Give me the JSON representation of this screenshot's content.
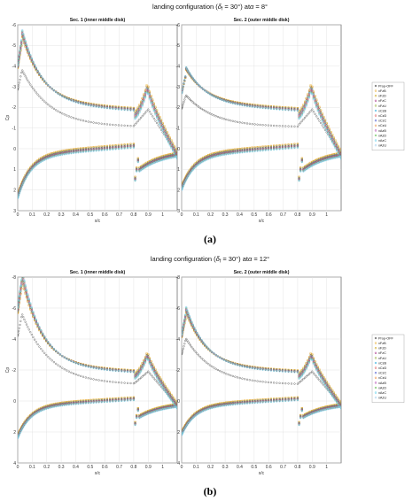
{
  "figure": {
    "label_a": "(a)",
    "label_b": "(b)"
  },
  "chart_data": [
    {
      "type": "scatter",
      "title": "landing configuration (δ_f = 30°) at α = 8°",
      "title_main": "landing configuration (",
      "title_delta": "δ",
      "title_sub": "f",
      "title_tail": " = 30°) at",
      "title_alpha": "α",
      "title_value": " = 8°",
      "panels": [
        {
          "title": "Sec. 1 (inner middle disk)",
          "upper_peak": -5.3,
          "lower_start": 2.0,
          "flap_peak": -3.0
        },
        {
          "title": "Sec. 2 (outer middle disk)",
          "upper_peak": -3.6,
          "lower_start": 1.6,
          "flap_peak": -3.0
        }
      ],
      "xlabel": "x/c",
      "ylabel": "C_p",
      "xlim": [
        0,
        1.1
      ],
      "ylim": [
        3,
        -6
      ],
      "xticks": [
        "0",
        "0.1",
        "0.2",
        "0.3",
        "0.4",
        "0.5",
        "0.6",
        "0.7",
        "0.8",
        "0.9",
        "1"
      ],
      "yticks": [
        "-6",
        "-5",
        "-4",
        "-3",
        "-2",
        "-1",
        "0",
        "1",
        "2",
        "3"
      ],
      "grid": true,
      "legend_position": "right",
      "series": [
        {
          "name": "Prop-OFF",
          "color": "#333333",
          "marker": "circle"
        },
        {
          "name": "xFzB",
          "color": "#e8a317",
          "marker": "square"
        },
        {
          "name": "xFzD",
          "color": "#c8a000",
          "marker": "diamond"
        },
        {
          "name": "xFzC",
          "color": "#a0207d",
          "marker": "cross"
        },
        {
          "name": "xFzU",
          "color": "#88aa22",
          "marker": "plus"
        },
        {
          "name": "xCzB",
          "color": "#22aadd",
          "marker": "circle"
        },
        {
          "name": "xCzD",
          "color": "#dd4444",
          "marker": "circle"
        },
        {
          "name": "xCzC",
          "color": "#3344cc",
          "marker": "circle"
        },
        {
          "name": "xCzU",
          "color": "#ee8833",
          "marker": "circle"
        },
        {
          "name": "xAzB",
          "color": "#aa33aa",
          "marker": "circle"
        },
        {
          "name": "xAzD",
          "color": "#55bb44",
          "marker": "circle"
        },
        {
          "name": "xAzC",
          "color": "#44ccee",
          "marker": "circle"
        },
        {
          "name": "xAzU",
          "color": "#99ccee",
          "marker": "circle"
        }
      ]
    },
    {
      "type": "scatter",
      "title": "landing configuration (δ_f = 30°) at α = 12°",
      "title_main": "landing configuration (",
      "title_delta": "δ",
      "title_sub": "f",
      "title_tail": " = 30°) at",
      "title_alpha": "α",
      "title_value": " = 12°",
      "panels": [
        {
          "title": "Sec. 1 (inner middle disk)",
          "upper_peak": -7.8,
          "lower_start": 2.0,
          "flap_peak": -3.0
        },
        {
          "title": "Sec. 2 (outer middle disk)",
          "upper_peak": -5.6,
          "lower_start": 1.8,
          "flap_peak": -3.0
        }
      ],
      "xlabel": "x/c",
      "ylabel": "C_p",
      "xlim": [
        0,
        1.1
      ],
      "ylim": [
        4,
        -8
      ],
      "xticks": [
        "0",
        "0.1",
        "0.2",
        "0.3",
        "0.4",
        "0.5",
        "0.6",
        "0.7",
        "0.8",
        "0.9",
        "1"
      ],
      "yticks": [
        "-8",
        "-6",
        "-4",
        "-2",
        "0",
        "2",
        "4"
      ],
      "grid": true,
      "legend_position": "right",
      "series": [
        {
          "name": "Prop-OFF",
          "color": "#333333",
          "marker": "circle"
        },
        {
          "name": "xFzB",
          "color": "#e8a317",
          "marker": "square"
        },
        {
          "name": "xFzD",
          "color": "#c8a000",
          "marker": "diamond"
        },
        {
          "name": "xFzC",
          "color": "#a0207d",
          "marker": "cross"
        },
        {
          "name": "xFzU",
          "color": "#88aa22",
          "marker": "plus"
        },
        {
          "name": "xCzB",
          "color": "#22aadd",
          "marker": "circle"
        },
        {
          "name": "xCzD",
          "color": "#dd4444",
          "marker": "circle"
        },
        {
          "name": "xCzC",
          "color": "#3344cc",
          "marker": "circle"
        },
        {
          "name": "xCzU",
          "color": "#ee8833",
          "marker": "circle"
        },
        {
          "name": "xAzB",
          "color": "#aa33aa",
          "marker": "circle"
        },
        {
          "name": "xAzD",
          "color": "#55bb44",
          "marker": "circle"
        },
        {
          "name": "xAzC",
          "color": "#44ccee",
          "marker": "circle"
        },
        {
          "name": "xAzU",
          "color": "#99ccee",
          "marker": "circle"
        }
      ]
    }
  ]
}
